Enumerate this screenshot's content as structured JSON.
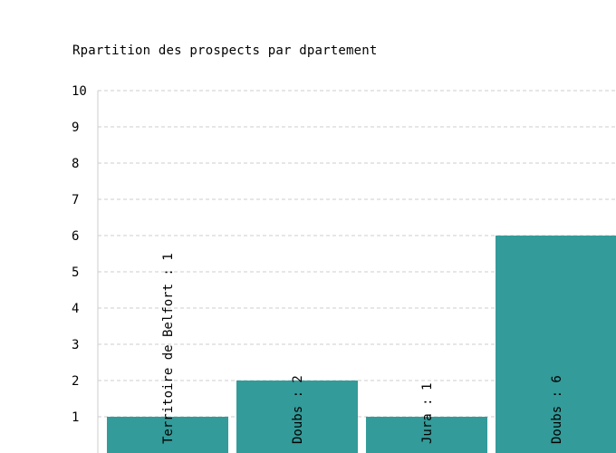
{
  "chart_data": {
    "type": "bar",
    "title": "Rpartition des prospects par dpartement",
    "categories": [
      "Territoire de Belfort",
      "Doubs",
      "Jura",
      "Doubs"
    ],
    "values": [
      1,
      2,
      1,
      6
    ],
    "bar_labels": [
      "Territoire de Belfort : 1",
      "Doubs : 2",
      "Jura : 1",
      "Doubs : 6"
    ],
    "ylim": [
      0,
      10
    ],
    "yticks": [
      "1",
      "2",
      "3",
      "4",
      "5",
      "6",
      "7",
      "8",
      "9",
      "10"
    ],
    "grid": true,
    "bar_color": "#339b99",
    "grid_color": "#cccccc"
  }
}
